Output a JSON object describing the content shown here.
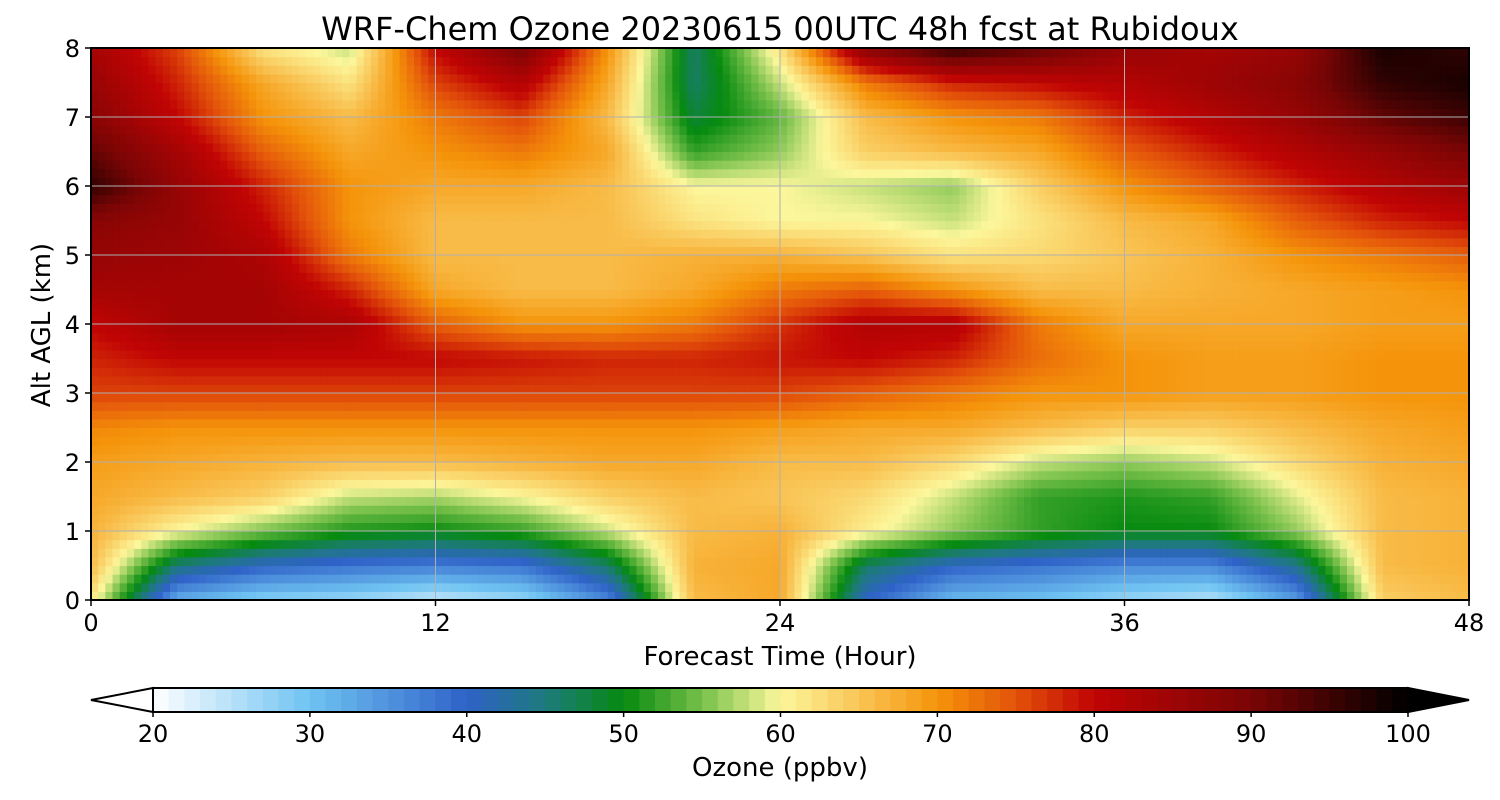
{
  "chart_data": {
    "type": "heatmap",
    "title": "WRF-Chem Ozone  20230615 00UTC 48h fcst at Rubidoux",
    "xlabel": "Forecast Time (Hour)",
    "ylabel": "Alt AGL (km)",
    "xlim": [
      0,
      48
    ],
    "ylim": [
      0,
      8
    ],
    "x_ticks": [
      0,
      12,
      24,
      36,
      48
    ],
    "y_ticks": [
      0,
      1,
      2,
      3,
      4,
      5,
      6,
      7,
      8
    ],
    "grid": true,
    "colorbar": {
      "label": "Ozone  (ppbv)",
      "range": [
        20,
        100
      ],
      "ticks": [
        20,
        30,
        40,
        50,
        60,
        70,
        80,
        90,
        100
      ],
      "extend": "both",
      "colors": [
        {
          "v": 20,
          "c": "#ffffff"
        },
        {
          "v": 30,
          "c": "#6fc3f2"
        },
        {
          "v": 40,
          "c": "#2f62c8"
        },
        {
          "v": 45,
          "c": "#1d7a7c"
        },
        {
          "v": 50,
          "c": "#068a0f"
        },
        {
          "v": 55,
          "c": "#77c04a"
        },
        {
          "v": 60,
          "c": "#fcf79c"
        },
        {
          "v": 65,
          "c": "#f9c556"
        },
        {
          "v": 70,
          "c": "#f5940a"
        },
        {
          "v": 75,
          "c": "#e3520a"
        },
        {
          "v": 80,
          "c": "#c10404"
        },
        {
          "v": 90,
          "c": "#7a0505"
        },
        {
          "v": 100,
          "c": "#000000"
        }
      ]
    },
    "x": [
      0,
      3,
      6,
      9,
      12,
      15,
      18,
      21,
      24,
      27,
      30,
      33,
      36,
      39,
      42,
      45,
      48
    ],
    "y": [
      0,
      0.5,
      1,
      1.5,
      2,
      2.5,
      3,
      3.5,
      4,
      4.5,
      5,
      5.5,
      6,
      6.5,
      7,
      7.5,
      8
    ],
    "z": [
      [
        62,
        32,
        28,
        27,
        24,
        27,
        36,
        66,
        68,
        40,
        31,
        30,
        27,
        25,
        34,
        64,
        66
      ],
      [
        66,
        45,
        40,
        38,
        37,
        38,
        46,
        67,
        68,
        46,
        40,
        38,
        36,
        36,
        44,
        66,
        67
      ],
      [
        67,
        60,
        55,
        51,
        50,
        52,
        58,
        66,
        67,
        61,
        56,
        52,
        50,
        50,
        56,
        66,
        67
      ],
      [
        68,
        66,
        64,
        58,
        57,
        60,
        64,
        66,
        65,
        63,
        58,
        52,
        51,
        52,
        59,
        66,
        67
      ],
      [
        69,
        68,
        67,
        66,
        66,
        67,
        68,
        68,
        66,
        66,
        63,
        58,
        56,
        58,
        63,
        67,
        68
      ],
      [
        71,
        70,
        70,
        70,
        70,
        70,
        70,
        70,
        69,
        68,
        68,
        66,
        64,
        64,
        66,
        68,
        69
      ],
      [
        76,
        76,
        76,
        76,
        76,
        76,
        76,
        76,
        76,
        74,
        72,
        70,
        70,
        69,
        69,
        70,
        70
      ],
      [
        78,
        80,
        80,
        80,
        80,
        79,
        78,
        78,
        79,
        80,
        78,
        73,
        70,
        69,
        69,
        70,
        70
      ],
      [
        80,
        84,
        84,
        83,
        74,
        70,
        70,
        72,
        77,
        82,
        82,
        72,
        68,
        68,
        68,
        69,
        69
      ],
      [
        84,
        84,
        84,
        78,
        68,
        66,
        66,
        68,
        72,
        74,
        70,
        66,
        66,
        67,
        68,
        69,
        70
      ],
      [
        86,
        85,
        83,
        72,
        66,
        66,
        66,
        67,
        67,
        65,
        62,
        63,
        65,
        67,
        70,
        72,
        74
      ],
      [
        88,
        86,
        80,
        70,
        66,
        66,
        66,
        62,
        60,
        60,
        58,
        62,
        66,
        68,
        74,
        78,
        80
      ],
      [
        96,
        86,
        78,
        70,
        68,
        68,
        66,
        60,
        60,
        58,
        56,
        64,
        70,
        74,
        78,
        82,
        85
      ],
      [
        92,
        84,
        74,
        68,
        70,
        72,
        68,
        52,
        56,
        64,
        66,
        68,
        74,
        78,
        82,
        86,
        90
      ],
      [
        88,
        80,
        70,
        66,
        72,
        76,
        66,
        48,
        54,
        66,
        70,
        72,
        78,
        82,
        86,
        92,
        95
      ],
      [
        86,
        78,
        68,
        62,
        76,
        82,
        68,
        46,
        58,
        72,
        78,
        80,
        82,
        85,
        88,
        96,
        98
      ],
      [
        84,
        76,
        62,
        58,
        80,
        90,
        70,
        46,
        62,
        88,
        96,
        92,
        86,
        84,
        86,
        98,
        96
      ]
    ]
  }
}
